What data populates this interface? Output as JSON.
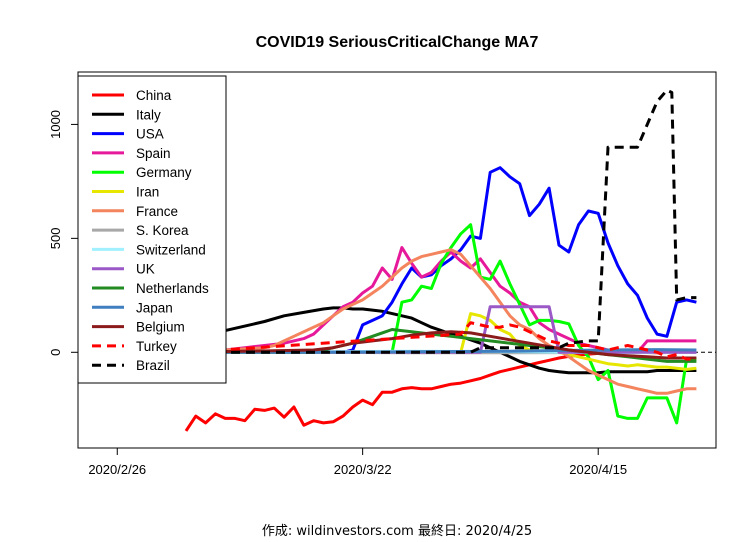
{
  "chart_data": {
    "type": "line",
    "title": "COVID19 SeriousCriticalChange MA7",
    "xlabel": "",
    "ylabel": "",
    "caption": "作成: wildinvestors.com 最終日: 2020/4/25",
    "x_tick_labels": [
      "2020/2/26",
      "2020/3/22",
      "2020/4/15"
    ],
    "x_tick_days": [
      0,
      25,
      49
    ],
    "y_ticks": [
      0,
      500,
      1000
    ],
    "xlim": [
      -4,
      61
    ],
    "ylim": [
      -420,
      1230
    ],
    "reference_line": 0,
    "legend_position": "top-left",
    "series": [
      {
        "name": "China",
        "color": "#ff0000",
        "dash": "solid",
        "x": [
          7,
          8,
          9,
          10,
          11,
          12,
          13,
          14,
          15,
          16,
          17,
          18,
          19,
          20,
          21,
          22,
          23,
          24,
          25,
          26,
          27,
          28,
          29,
          30,
          31,
          32,
          33,
          34,
          35,
          36,
          37,
          38,
          39,
          40,
          41,
          42,
          43,
          44,
          45,
          46,
          47,
          48,
          49,
          50,
          51,
          52,
          53,
          54,
          55,
          56,
          57,
          58,
          59
        ],
        "y": [
          -345,
          -280,
          -310,
          -270,
          -290,
          -290,
          -300,
          -250,
          -255,
          -245,
          -285,
          -240,
          -320,
          -300,
          -310,
          -305,
          -280,
          -240,
          -210,
          -230,
          -175,
          -175,
          -160,
          -155,
          -160,
          -160,
          -150,
          -140,
          -135,
          -125,
          -115,
          -100,
          -85,
          -75,
          -65,
          -55,
          -45,
          -35,
          -25,
          -18,
          -12,
          -8,
          -5,
          -3,
          -2,
          -1,
          0,
          -1,
          -2,
          -1,
          0,
          0,
          0
        ]
      },
      {
        "name": "Italy",
        "color": "#000000",
        "dash": "solid",
        "x": [
          7,
          9,
          11,
          13,
          15,
          17,
          19,
          21,
          22,
          23,
          24,
          25,
          26,
          27,
          28,
          29,
          30,
          31,
          32,
          33,
          34,
          35,
          36,
          37,
          38,
          39,
          40,
          41,
          42,
          43,
          44,
          45,
          46,
          47,
          48,
          49,
          50,
          51,
          52,
          53,
          54,
          55,
          56,
          57,
          58,
          59
        ],
        "y": [
          45,
          70,
          95,
          115,
          135,
          160,
          175,
          190,
          195,
          195,
          190,
          190,
          185,
          180,
          170,
          160,
          150,
          130,
          110,
          95,
          80,
          70,
          55,
          40,
          20,
          0,
          -20,
          -40,
          -55,
          -70,
          -80,
          -85,
          -90,
          -90,
          -90,
          -90,
          -85,
          -85,
          -85,
          -85,
          -85,
          -80,
          -80,
          -80,
          -80,
          -80
        ]
      },
      {
        "name": "USA",
        "color": "#0000ff",
        "dash": "solid",
        "x": [
          7,
          20,
          23,
          24,
          25,
          26,
          27,
          28,
          29,
          30,
          31,
          32,
          33,
          34,
          35,
          36,
          37,
          38,
          39,
          40,
          41,
          42,
          43,
          44,
          45,
          46,
          47,
          48,
          49,
          50,
          51,
          52,
          53,
          54,
          55,
          56,
          57,
          58,
          59
        ],
        "y": [
          0,
          0,
          0,
          10,
          120,
          140,
          160,
          220,
          300,
          370,
          330,
          340,
          380,
          410,
          450,
          510,
          500,
          790,
          810,
          770,
          740,
          600,
          650,
          720,
          470,
          440,
          560,
          620,
          610,
          480,
          380,
          300,
          250,
          150,
          80,
          70,
          220,
          230,
          220
        ]
      },
      {
        "name": "Spain",
        "color": "#e6199a",
        "dash": "solid",
        "x": [
          7,
          11,
          13,
          15,
          17,
          19,
          20,
          21,
          22,
          23,
          24,
          25,
          26,
          27,
          28,
          29,
          30,
          31,
          32,
          33,
          34,
          35,
          36,
          37,
          38,
          39,
          40,
          41,
          42,
          43,
          44,
          45,
          46,
          47,
          48,
          49,
          50,
          51,
          52,
          53,
          54,
          55,
          56,
          57,
          58,
          59
        ],
        "y": [
          0,
          10,
          20,
          30,
          40,
          60,
          80,
          120,
          160,
          200,
          220,
          260,
          290,
          370,
          320,
          460,
          390,
          330,
          350,
          400,
          440,
          400,
          370,
          410,
          350,
          290,
          260,
          220,
          200,
          130,
          100,
          80,
          60,
          40,
          30,
          20,
          10,
          5,
          0,
          0,
          50,
          50,
          50,
          50,
          50,
          50
        ]
      },
      {
        "name": "Germany",
        "color": "#00ff00",
        "dash": "solid",
        "x": [
          7,
          17,
          27,
          28,
          29,
          30,
          31,
          32,
          33,
          34,
          35,
          36,
          37,
          38,
          39,
          40,
          41,
          42,
          43,
          44,
          45,
          46,
          47,
          48,
          49,
          50,
          51,
          52,
          53,
          54,
          55,
          56,
          57,
          58,
          59
        ],
        "y": [
          0,
          0,
          0,
          0,
          220,
          230,
          290,
          280,
          390,
          460,
          520,
          560,
          330,
          320,
          400,
          300,
          210,
          120,
          140,
          140,
          135,
          125,
          30,
          -20,
          -120,
          -80,
          -280,
          -290,
          -290,
          -200,
          -200,
          -200,
          -310,
          -30,
          -30
        ]
      },
      {
        "name": "Iran",
        "color": "#e6e600",
        "dash": "solid",
        "x": [
          7,
          30,
          35,
          36,
          37,
          38,
          39,
          40,
          41,
          42,
          43,
          44,
          45,
          46,
          47,
          48,
          49,
          50,
          51,
          52,
          53,
          54,
          55,
          56,
          57,
          58,
          59
        ],
        "y": [
          0,
          0,
          0,
          170,
          160,
          140,
          100,
          80,
          30,
          10,
          0,
          0,
          0,
          -10,
          -20,
          -30,
          -40,
          -50,
          -55,
          -60,
          -55,
          -60,
          -65,
          -65,
          -70,
          -75,
          -70
        ]
      },
      {
        "name": "France",
        "color": "#f4845e",
        "dash": "solid",
        "x": [
          7,
          15,
          16,
          17,
          18,
          19,
          20,
          21,
          22,
          23,
          24,
          25,
          26,
          27,
          28,
          29,
          30,
          31,
          32,
          33,
          34,
          35,
          36,
          37,
          38,
          39,
          40,
          41,
          42,
          43,
          44,
          45,
          46,
          47,
          48,
          49,
          50,
          51,
          52,
          53,
          54,
          55,
          56,
          57,
          58,
          59
        ],
        "y": [
          0,
          20,
          30,
          50,
          70,
          90,
          110,
          130,
          160,
          190,
          210,
          230,
          260,
          290,
          330,
          370,
          400,
          420,
          430,
          440,
          450,
          430,
          380,
          330,
          280,
          220,
          160,
          120,
          100,
          60,
          30,
          10,
          -20,
          -50,
          -80,
          -100,
          -120,
          -140,
          -150,
          -160,
          -170,
          -180,
          -180,
          -170,
          -160,
          -160
        ]
      },
      {
        "name": "S. Korea",
        "color": "#a8a8a8",
        "dash": "solid",
        "x": [
          7,
          20,
          30,
          40,
          50,
          59
        ],
        "y": [
          0,
          0,
          -2,
          -2,
          -1,
          0
        ]
      },
      {
        "name": "Switzerland",
        "color": "#a0f0ff",
        "dash": "solid",
        "x": [
          7,
          20,
          30,
          40,
          50,
          59
        ],
        "y": [
          0,
          2,
          5,
          3,
          -2,
          0
        ]
      },
      {
        "name": "UK",
        "color": "#9b59c7",
        "dash": "solid",
        "x": [
          7,
          37,
          38,
          39,
          40,
          41,
          42,
          43,
          44,
          45,
          46,
          47,
          48,
          49,
          50,
          51,
          52,
          53,
          54,
          55,
          56,
          57,
          58,
          59
        ],
        "y": [
          0,
          0,
          200,
          200,
          200,
          200,
          200,
          200,
          200,
          0,
          0,
          0,
          0,
          0,
          0,
          0,
          0,
          0,
          0,
          0,
          0,
          0,
          0,
          0
        ]
      },
      {
        "name": "Netherlands",
        "color": "#228b22",
        "dash": "solid",
        "x": [
          7,
          20,
          22,
          24,
          26,
          28,
          30,
          32,
          34,
          36,
          38,
          40,
          42,
          44,
          46,
          48,
          50,
          52,
          54,
          56,
          58,
          59
        ],
        "y": [
          0,
          0,
          20,
          40,
          70,
          100,
          90,
          80,
          70,
          60,
          50,
          40,
          30,
          20,
          10,
          0,
          -10,
          -20,
          -30,
          -40,
          -40,
          -40
        ]
      },
      {
        "name": "Japan",
        "color": "#3f7fbf",
        "dash": "solid",
        "x": [
          7,
          20,
          30,
          40,
          45,
          50,
          55,
          59
        ],
        "y": [
          0,
          0,
          2,
          5,
          8,
          10,
          12,
          10
        ]
      },
      {
        "name": "Belgium",
        "color": "#8b1a1a",
        "dash": "solid",
        "x": [
          7,
          20,
          22,
          24,
          26,
          28,
          30,
          32,
          34,
          36,
          38,
          40,
          42,
          44,
          46,
          48,
          50,
          52,
          54,
          56,
          58,
          59
        ],
        "y": [
          0,
          10,
          20,
          40,
          50,
          60,
          75,
          85,
          90,
          85,
          70,
          55,
          40,
          25,
          10,
          0,
          -10,
          -15,
          -20,
          -25,
          -25,
          -25
        ]
      },
      {
        "name": "Turkey",
        "color": "#ff0000",
        "dash": "dashed",
        "x": [
          7,
          35,
          36,
          37,
          38,
          39,
          40,
          41,
          42,
          43,
          44,
          45,
          46,
          47,
          48,
          49,
          50,
          51,
          52,
          53,
          54,
          55,
          56,
          57,
          58,
          59
        ],
        "y": [
          0,
          80,
          130,
          120,
          110,
          110,
          120,
          110,
          90,
          70,
          50,
          40,
          30,
          30,
          30,
          20,
          10,
          20,
          30,
          20,
          10,
          0,
          -20,
          -10,
          -30,
          -30
        ]
      },
      {
        "name": "Brazil",
        "color": "#000000",
        "dash": "dashed",
        "x": [
          7,
          36,
          37,
          45,
          46,
          48,
          49,
          50,
          51,
          52,
          53,
          54,
          55,
          56,
          56.5,
          57,
          58,
          59
        ],
        "y": [
          0,
          0,
          20,
          20,
          40,
          50,
          50,
          900,
          900,
          900,
          900,
          1000,
          1100,
          1150,
          1140,
          230,
          240,
          240
        ]
      }
    ]
  }
}
